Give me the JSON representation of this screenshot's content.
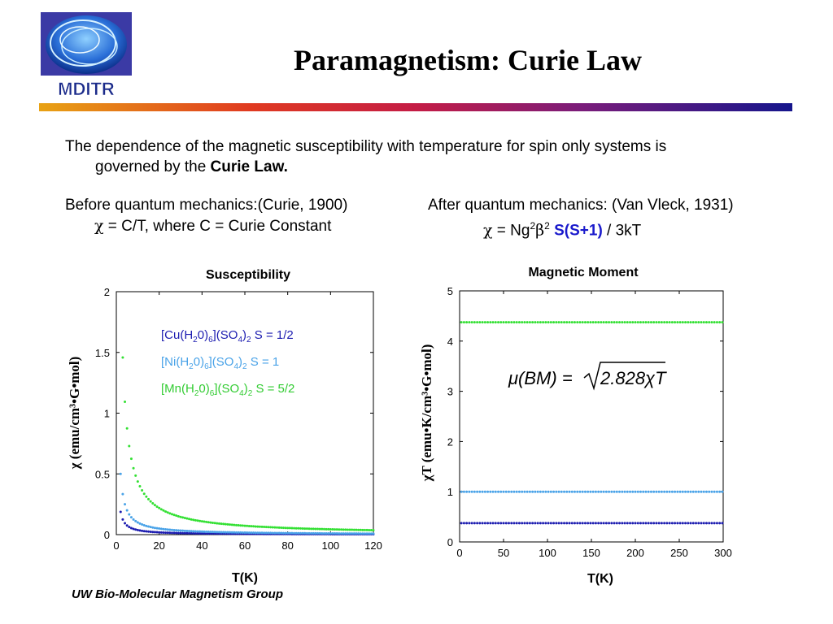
{
  "slide": {
    "title": "Paramagnetism: Curie Law",
    "logo_text": "MDITR",
    "footer": "UW Bio-Molecular Magnetism Group"
  },
  "intro": {
    "line1": "The dependence of the magnetic susceptibility with temperature for spin only systems is",
    "line2_prefix": "governed by the ",
    "line2_bold": "Curie Law."
  },
  "before": {
    "heading": "Before quantum mechanics:(Curie, 1900)",
    "formula_symbol": "χ",
    "formula_text": " = C/T, where C = Curie Constant"
  },
  "after": {
    "heading": "After quantum mechanics: (Van Vleck, 1931)",
    "formula_symbol": "χ",
    "formula_mid": " = Ng",
    "exp1": "2",
    "beta": "β",
    "exp2": "2",
    "formula_spin": " S(S+1)",
    "formula_tail": " / 3kT"
  },
  "colors": {
    "cu": "#1c1cb0",
    "ni": "#4aa3e8",
    "mn": "#33e033"
  },
  "chart_data": [
    {
      "type": "scatter",
      "title": "Susceptibility",
      "xlabel": "T(K)",
      "ylabel": "χ (emu/cm³•G•mol)",
      "xlim": [
        0,
        120
      ],
      "ylim": [
        0,
        2
      ],
      "xticks": [
        "0",
        "20",
        "40",
        "60",
        "80",
        "100",
        "120"
      ],
      "yticks": [
        "0",
        "0.5",
        "1",
        "1.5",
        "2"
      ],
      "grid": false,
      "legend_position": "top-right",
      "series": [
        {
          "name": "[Cu(H₂0)₆](SO₄)₂ S = 1/2",
          "C": 0.375
        },
        {
          "name": "[Ni(H₂0)₆](SO₄)₂ S = 1",
          "C": 1.0
        },
        {
          "name": "[Mn(H₂0)₆](SO₄)₂ S = 5/2",
          "C": 4.375
        }
      ],
      "x_start": 2,
      "x_step": 1
    },
    {
      "type": "scatter",
      "title": "Magnetic Moment",
      "xlabel": "T(K)",
      "ylabel": "χT (emu•K/cm³•G•mol)",
      "xlim": [
        0,
        300
      ],
      "ylim": [
        0,
        5
      ],
      "xticks": [
        "0",
        "50",
        "100",
        "150",
        "200",
        "250",
        "300"
      ],
      "yticks": [
        "0",
        "1",
        "2",
        "3",
        "4",
        "5"
      ],
      "grid": false,
      "annotation": "μ(BM) = √(2.828χT)",
      "series": [
        {
          "name": "[Cu(H₂0)₆](SO₄)₂",
          "y": 0.375
        },
        {
          "name": "[Ni(H₂0)₆](SO₄)₂",
          "y": 1.0
        },
        {
          "name": "[Mn(H₂0)₆](SO₄)₂",
          "y": 4.375
        }
      ],
      "x_start": 2,
      "x_step": 3
    }
  ]
}
